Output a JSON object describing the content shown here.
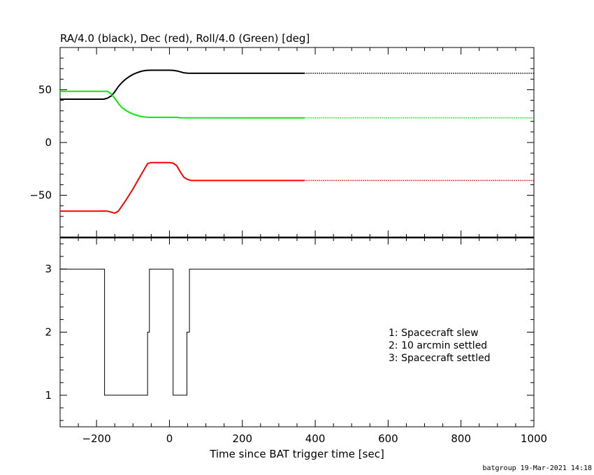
{
  "chart_data": [
    {
      "type": "line",
      "title": "RA/4.0 (black), Dec (red), Roll/4.0 (Green) [deg]",
      "xlim": [
        -300,
        1000
      ],
      "ylim": [
        -90,
        90
      ],
      "yticks": [
        -50,
        0,
        50
      ],
      "series": [
        {
          "color": "#000000",
          "x": [
            -300,
            -180,
            -170,
            -160,
            -150,
            -140,
            -130,
            -120,
            -110,
            -100,
            -90,
            -80,
            -70,
            -60,
            -50,
            0,
            10,
            20,
            30,
            40,
            50,
            60,
            100,
            370,
            1000
          ],
          "y": [
            41,
            41,
            42,
            44,
            48,
            53,
            57,
            60,
            62.5,
            64.5,
            66,
            67.2,
            68,
            68.4,
            68.5,
            68.5,
            68.3,
            67.8,
            67,
            66,
            65.7,
            65.6,
            65.6,
            65.6,
            65.6
          ]
        },
        {
          "color": "#ff0000",
          "x": [
            -300,
            -170,
            -160,
            -150,
            -140,
            -130,
            -120,
            -100,
            -80,
            -60,
            -50,
            0,
            10,
            20,
            30,
            40,
            50,
            60,
            370,
            1000
          ],
          "y": [
            -65,
            -65,
            -66,
            -67,
            -65,
            -60,
            -55,
            -44,
            -32,
            -20,
            -19,
            -19,
            -19.5,
            -22,
            -28,
            -33,
            -35,
            -36,
            -36,
            -36
          ]
        },
        {
          "color": "#00ee00",
          "x": [
            -300,
            -170,
            -160,
            -150,
            -140,
            -130,
            -120,
            -110,
            -100,
            -90,
            -80,
            -70,
            -60,
            -50,
            20,
            30,
            370,
            1000
          ],
          "y": [
            48.5,
            48.5,
            46,
            42,
            37,
            33,
            30.5,
            28.5,
            27,
            25.8,
            24.8,
            24.2,
            23.9,
            23.8,
            23.8,
            23.4,
            23.3,
            23.3
          ]
        }
      ]
    },
    {
      "type": "line",
      "xlim": [
        -300,
        1000
      ],
      "ylim": [
        0.5,
        3.5
      ],
      "yticks": [
        1,
        2,
        3
      ],
      "xticks": [
        -200,
        0,
        200,
        400,
        600,
        800,
        1000
      ],
      "xlabel": "Time since BAT trigger time [sec]",
      "series": [
        {
          "color": "#000000",
          "step": true,
          "x": [
            -300,
            -178,
            -178,
            -60,
            -60,
            -55,
            -55,
            10,
            10,
            48,
            48,
            55,
            55,
            1000
          ],
          "y": [
            3,
            3,
            1,
            1,
            2,
            2,
            3,
            3,
            1,
            1,
            2,
            2,
            3,
            3
          ]
        }
      ],
      "legend_lines": [
        "1: Spacecraft slew",
        "2: 10 arcmin settled",
        "3: Spacecraft settled"
      ]
    }
  ],
  "footer": "batgroup 19-Mar-2021 14:18"
}
